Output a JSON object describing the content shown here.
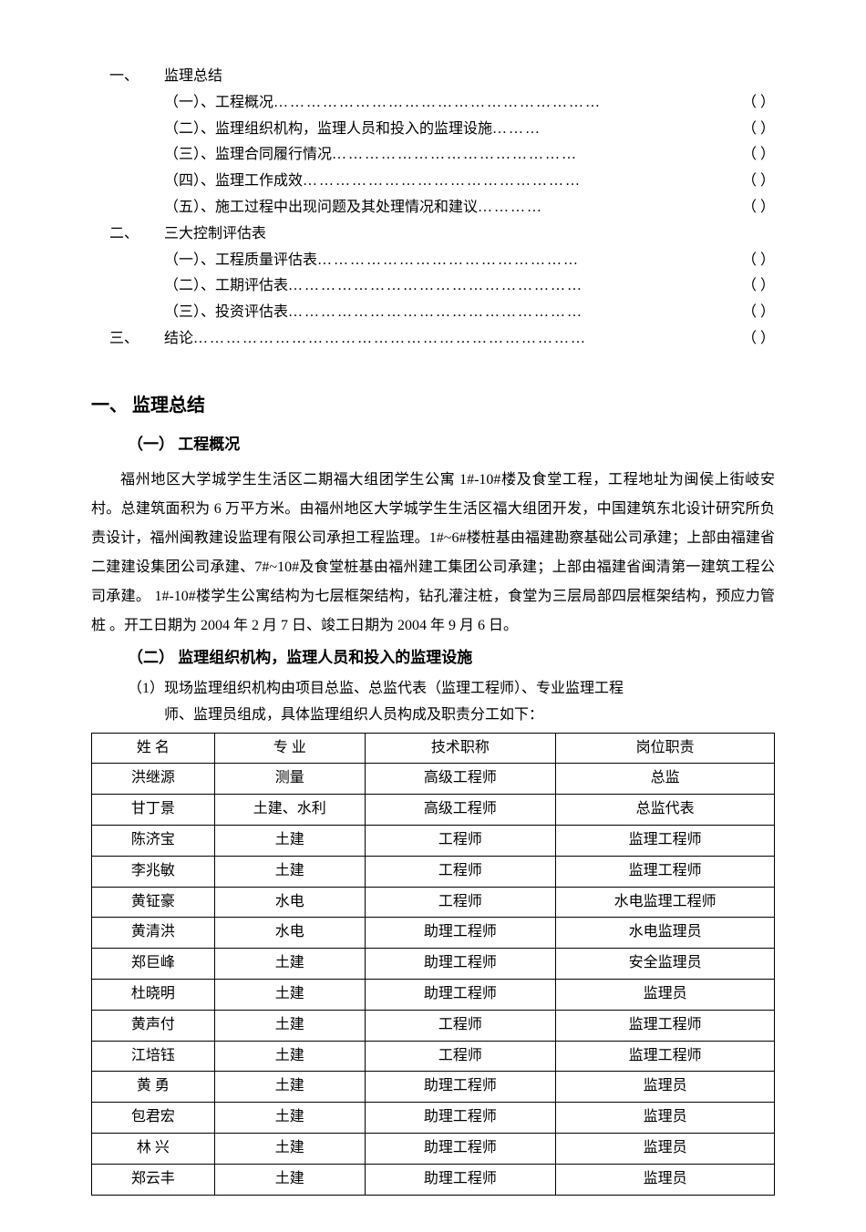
{
  "toc": {
    "sections": [
      {
        "num": "一、",
        "title": "监理总结",
        "items": [
          {
            "text": "（一）、工程概况",
            "dots": "……………………………………………………",
            "page": "（ ）"
          },
          {
            "text": "（二）、监理组织机构，监理人员和投入的监理设施",
            "dots": "………",
            "page": "（ ）"
          },
          {
            "text": "（三）、监理合同履行情况",
            "dots": "………………………………………",
            "page": "（ ）"
          },
          {
            "text": "（四）、监理工作成效",
            "dots": "……………………………………………",
            "page": "（ ）"
          },
          {
            "text": "（五）、施工过程中出现问题及其处理情况和建议",
            "dots": "…………",
            "page": "（ ）"
          }
        ]
      },
      {
        "num": "二、",
        "title": "三大控制评估表",
        "items": [
          {
            "text": "（一）、工程质量评估表",
            "dots": "…………………………………………",
            "page": "（  ）"
          },
          {
            "text": "（二）、工期评估表",
            "dots": "………………………………………………",
            "page": "（  ）"
          },
          {
            "text": "（三）、投资评估表",
            "dots": "………………………………………………",
            "page": "（  ）"
          }
        ]
      },
      {
        "num": "三、",
        "title": "结论",
        "title_dots": "………………………………………………………………",
        "title_page": "（  ）",
        "items": []
      }
    ]
  },
  "section1": {
    "heading": "一、 监理总结",
    "sub1_heading": "（一） 工程概况",
    "paragraph": "福州地区大学城学生生活区二期福大组团学生公寓 1#-10#楼及食堂工程，工程地址为闽侯上街岐安村。总建筑面积为 6 万平方米。由福州地区大学城学生生活区福大组团开发，中国建筑东北设计研究所负责设计，福州闽教建设监理有限公司承担工程监理。1#~6#楼桩基由福建勘察基础公司承建；上部由福建省二建建设集团公司承建、7#~10#及食堂桩基由福州建工集团公司承建；上部由福建省闽清第一建筑工程公司承建。 1#-10#楼学生公寓结构为七层框架结构，钻孔灌注桩，食堂为三层局部四层框架结构，预应力管桩 。开工日期为 2004 年 2 月 7 日、竣工日期为 2004 年 9 月 6 日。",
    "sub2_heading": "（二）   监理组织机构，监理人员和投入的监理设施",
    "sub2_line1": "（1）现场监理组织机构由项目总监、总监代表（监理工程师）、专业监理工程",
    "sub2_line2": "师、监理员组成，具体监理组织人员构成及职责分工如下："
  },
  "table": {
    "headers": {
      "name": "姓   名",
      "major": "专   业",
      "title": "技术职称",
      "position": "岗位职责"
    },
    "rows": [
      {
        "name": "洪继源",
        "major": "测量",
        "title": "高级工程师",
        "position": "总监"
      },
      {
        "name": "甘丁景",
        "major": "土建、水利",
        "title": "高级工程师",
        "position": "总监代表"
      },
      {
        "name": "陈济宝",
        "major": "土建",
        "title": "工程师",
        "position": "监理工程师"
      },
      {
        "name": "李兆敏",
        "major": "土建",
        "title": "工程师",
        "position": "监理工程师"
      },
      {
        "name": "黄钲豪",
        "major": "水电",
        "title": "工程师",
        "position": "水电监理工程师"
      },
      {
        "name": "黄清洪",
        "major": "水电",
        "title": "助理工程师",
        "position": "水电监理员"
      },
      {
        "name": "郑巨峰",
        "major": "土建",
        "title": "助理工程师",
        "position": "安全监理员"
      },
      {
        "name": "杜晓明",
        "major": "土建",
        "title": "助理工程师",
        "position": "监理员"
      },
      {
        "name": "黄声付",
        "major": "土建",
        "title": "工程师",
        "position": "监理工程师"
      },
      {
        "name": "江培钰",
        "major": "土建",
        "title": "工程师",
        "position": "监理工程师"
      },
      {
        "name": "黄 勇",
        "major": "土建",
        "title": "助理工程师",
        "position": "监理员"
      },
      {
        "name": "包君宏",
        "major": "土建",
        "title": "助理工程师",
        "position": "监理员"
      },
      {
        "name": "林 兴",
        "major": "土建",
        "title": "助理工程师",
        "position": "监理员"
      },
      {
        "name": "郑云丰",
        "major": "土建",
        "title": "助理工程师",
        "position": "监理员"
      }
    ]
  }
}
